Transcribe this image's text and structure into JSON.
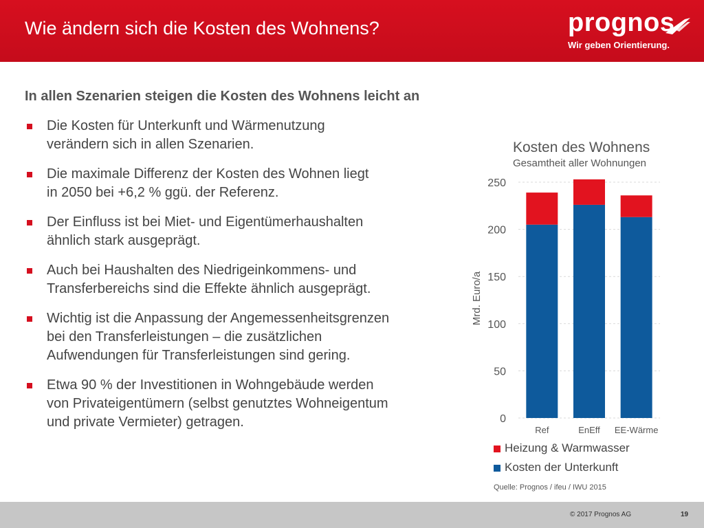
{
  "header": {
    "title": "Wie ändern sich die Kosten des Wohnens?"
  },
  "logo": {
    "word": "prognos",
    "tagline": "Wir geben Orientierung."
  },
  "content": {
    "subtitle": "In allen Szenarien steigen die Kosten des Wohnens leicht an",
    "bullets": [
      {
        "line1": "Die Kosten für Unterkunft und Wärmenutzung",
        "line2": "verändern sich in allen Szenarien.",
        "line3": ""
      },
      {
        "line1": "Die maximale Differenz der Kosten des Wohnen liegt",
        "line2": "in 2050 bei +6,2 % ggü. der Referenz.",
        "line3": ""
      },
      {
        "line1": "Der Einfluss ist bei Miet- und Eigentümerhaushalten",
        "line2": "ähnlich stark ausgeprägt.",
        "line3": ""
      },
      {
        "line1": "Auch bei Haushalten des Niedrigeinkommens- und",
        "line2": "Transferbereichs sind die Effekte ähnlich ausgeprägt.",
        "line3": ""
      },
      {
        "line1": "Wichtig ist die Anpassung der Angemessenheitsgrenzen",
        "line2": "bei den Transferleistungen – die zusätzlichen",
        "line3": "Aufwendungen für Transferleistungen sind gering."
      },
      {
        "line1": "Etwa 90 % der Investitionen in Wohngebäude werden",
        "line2": "von Privateigentümern (selbst genutztes Wohneigentum",
        "line3": "und private Vermieter) getragen."
      }
    ]
  },
  "chart_data": {
    "type": "bar",
    "stacked": true,
    "title": "Kosten des Wohnens",
    "subtitle": "Gesamtheit aller Wohnungen",
    "xlabel": "",
    "ylabel": "Mrd. Euro/a",
    "categories": [
      "Ref",
      "EnEff",
      "EE-Wärme"
    ],
    "series": [
      {
        "name": "Kosten der Unterkunft",
        "color": "#0e5a9c",
        "values": [
          205,
          226,
          213
        ]
      },
      {
        "name": "Heizung & Warmwasser",
        "color": "#e2131f",
        "values": [
          34,
          27,
          23
        ]
      }
    ],
    "ylim": [
      0,
      250
    ],
    "yticks": [
      0,
      50,
      100,
      150,
      200,
      250
    ],
    "grid": true,
    "legend": [
      {
        "label": "Heizung & Warmwasser",
        "color": "#e2131f"
      },
      {
        "label": "Kosten der Unterkunft",
        "color": "#0e5a9c"
      }
    ],
    "legend_position": "bottom",
    "source": "Quelle: Prognos / ifeu / IWU 2015"
  },
  "footer": {
    "copyright": "© 2017 Prognos AG",
    "page": "19"
  }
}
